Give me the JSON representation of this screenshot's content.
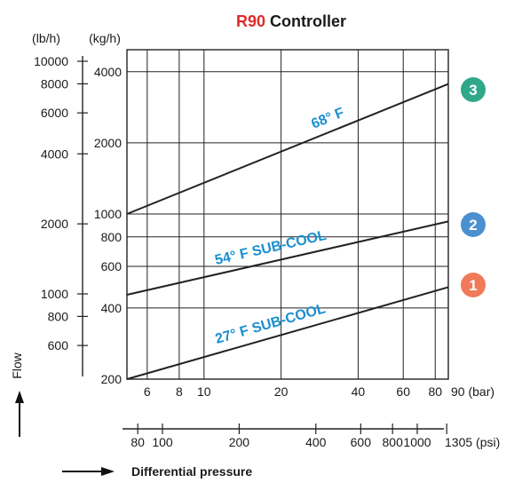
{
  "chart_data": {
    "type": "line",
    "title": {
      "prefix": "R90",
      "rest": " Controller",
      "prefix_color": "#e02b2b"
    },
    "x_axis_bar": {
      "scale": "log",
      "range": [
        5,
        90
      ],
      "unit_label": "90 (bar)",
      "ticks": [
        5,
        6,
        8,
        10,
        20,
        40,
        60,
        80,
        90
      ],
      "tick_labels": [
        {
          "value": 6,
          "label": "6"
        },
        {
          "value": 8,
          "label": "8"
        },
        {
          "value": 10,
          "label": "10"
        },
        {
          "value": 20,
          "label": "20"
        },
        {
          "value": 40,
          "label": "40"
        },
        {
          "value": 60,
          "label": "60"
        },
        {
          "value": 80,
          "label": "80"
        }
      ],
      "grid": true
    },
    "x_axis_psi": {
      "scale": "log",
      "unit_label": "1305 (psi)",
      "ticks": [
        80,
        100,
        200,
        400,
        600,
        800,
        1000,
        1305
      ],
      "tick_labels": [
        {
          "value": 80,
          "label": "80"
        },
        {
          "value": 100,
          "label": "100"
        },
        {
          "value": 200,
          "label": "200"
        },
        {
          "value": 400,
          "label": "400"
        },
        {
          "value": 600,
          "label": "600"
        },
        {
          "value": 800,
          "label": "800"
        },
        {
          "value": 1000,
          "label": "1000"
        }
      ]
    },
    "y_axis_kgh": {
      "scale": "log",
      "unit_label": "(kg/h)",
      "range": [
        200,
        5000
      ],
      "ticks": [
        200,
        400,
        600,
        800,
        1000,
        2000,
        4000
      ],
      "tick_labels": [
        "200",
        "400",
        "600",
        "800",
        "1000",
        "2000",
        "4000"
      ],
      "grid": true
    },
    "y_axis_lbh": {
      "scale": "log",
      "unit_label": "(lb/h)",
      "ticks": [
        600,
        800,
        1000,
        2000,
        4000,
        6000,
        8000,
        10000
      ],
      "tick_labels": [
        "600",
        "800",
        "1000",
        "2000",
        "4000",
        "6000",
        "8000",
        "10000"
      ]
    },
    "series": [
      {
        "name": "68° F",
        "badge": "3",
        "color": "#222222",
        "badge_color": "#2fa88a",
        "points": [
          {
            "x": 5,
            "y": 1000
          },
          {
            "x": 90,
            "y": 3550
          }
        ]
      },
      {
        "name": "54° F SUB-COOL",
        "badge": "2",
        "color": "#222222",
        "badge_color": "#4a90d0",
        "points": [
          {
            "x": 5,
            "y": 455
          },
          {
            "x": 90,
            "y": 930
          }
        ]
      },
      {
        "name": "27° F SUB-COOL",
        "badge": "1",
        "color": "#222222",
        "badge_color": "#f07a5a",
        "points": [
          {
            "x": 5,
            "y": 200
          },
          {
            "x": 90,
            "y": 490
          }
        ]
      }
    ],
    "label_color": "#1a8fd0",
    "y_caption": "Flow",
    "x_caption": "Differential pressure"
  }
}
